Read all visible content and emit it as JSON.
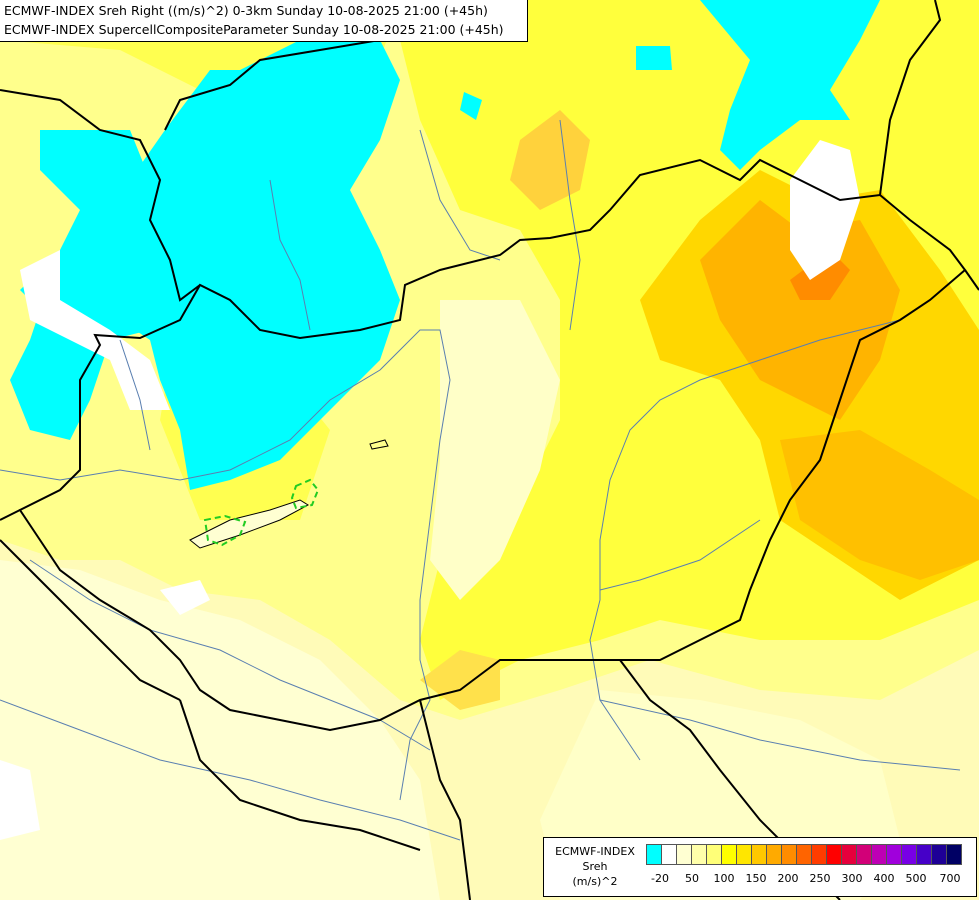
{
  "header": {
    "line1": "ECMWF-INDEX Sreh Right ((m/s)^2) 0-3km Sunday 10-08-2025 21:00 (+45h)",
    "line2": "ECMWF-INDEX SupercellCompositeParameter Sunday 10-08-2025 21:00 (+45h)"
  },
  "legend": {
    "line1": "ECMWF-INDEX",
    "line2": "Sreh",
    "line3": "(m/s)^2",
    "colors": [
      "#00ffff",
      "#ffffff",
      "#ffffd2",
      "#ffffaa",
      "#ffff78",
      "#ffff00",
      "#ffe600",
      "#ffc800",
      "#ffaa00",
      "#ff8c00",
      "#ff6400",
      "#ff3c00",
      "#ff0000",
      "#e6003c",
      "#d20078",
      "#be00b4",
      "#a000dc",
      "#7800e6",
      "#4600c8",
      "#1e0096",
      "#000064"
    ],
    "ticks": [
      "-20",
      "50",
      "100",
      "150",
      "200",
      "250",
      "300",
      "400",
      "500",
      "700"
    ]
  },
  "colors": {
    "cyan": "#00ffff",
    "pale_yellow": "#ffffc8",
    "light_yellow": "#ffff96",
    "yellow": "#ffff00",
    "gold": "#ffd700",
    "orange": "#ffaa00",
    "dark_orange": "#ff8c00",
    "border": "#000000",
    "river": "#5a7fb0",
    "scp_contour": "#22cc22"
  }
}
